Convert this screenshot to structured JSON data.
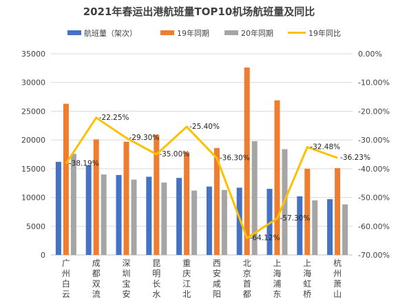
{
  "chart_data": {
    "type": "bar",
    "title": "2021年春运出港航班量TOP10机场航班量及同比",
    "categories": [
      "广州白云",
      "成都双流",
      "深圳宝安",
      "昆明长水",
      "重庆江北",
      "西安咸阳",
      "北京首都",
      "上海浦东",
      "上海虹桥",
      "杭州萧山"
    ],
    "series": [
      {
        "name": "航班量（架次）",
        "type": "bar",
        "axis": "left",
        "color": "#4472C4",
        "values": [
          16200,
          15600,
          13900,
          13600,
          13400,
          11900,
          11700,
          11500,
          10200,
          9700
        ]
      },
      {
        "name": "19年同期",
        "type": "bar",
        "axis": "left",
        "color": "#ED7D31",
        "values": [
          26300,
          20100,
          19700,
          20900,
          17900,
          18600,
          32600,
          26900,
          15000,
          15100
        ]
      },
      {
        "name": "20年同期",
        "type": "bar",
        "axis": "left",
        "color": "#A5A5A5",
        "values": [
          17600,
          14000,
          13100,
          12600,
          11200,
          11300,
          19800,
          18400,
          9500,
          8800
        ]
      },
      {
        "name": "19年同比",
        "type": "line",
        "axis": "right",
        "color": "#FFC000",
        "values": [
          -38.19,
          -22.25,
          -29.3,
          -35.0,
          -25.4,
          -36.3,
          -64.12,
          -57.3,
          -32.48,
          -36.23
        ],
        "labels": [
          "-38.19%",
          "-22.25%",
          "-29.30%",
          "-35.00%",
          "-25.40%",
          "-36.30%",
          "-64.12%",
          "-57.30%",
          "-32.48%",
          "-36.23%"
        ]
      }
    ],
    "y_left": {
      "min": 0,
      "max": 35000,
      "step": 5000,
      "ticks": [
        "0",
        "5000",
        "10000",
        "15000",
        "20000",
        "25000",
        "30000",
        "35000"
      ]
    },
    "y_right": {
      "min": -70,
      "max": 0,
      "step": 10,
      "ticks": [
        "0.00%",
        "-10.00%",
        "-20.00%",
        "-30.00%",
        "-40.00%",
        "-50.00%",
        "-60.00%",
        "-70.00%"
      ]
    },
    "grid": true,
    "legend": "top"
  }
}
